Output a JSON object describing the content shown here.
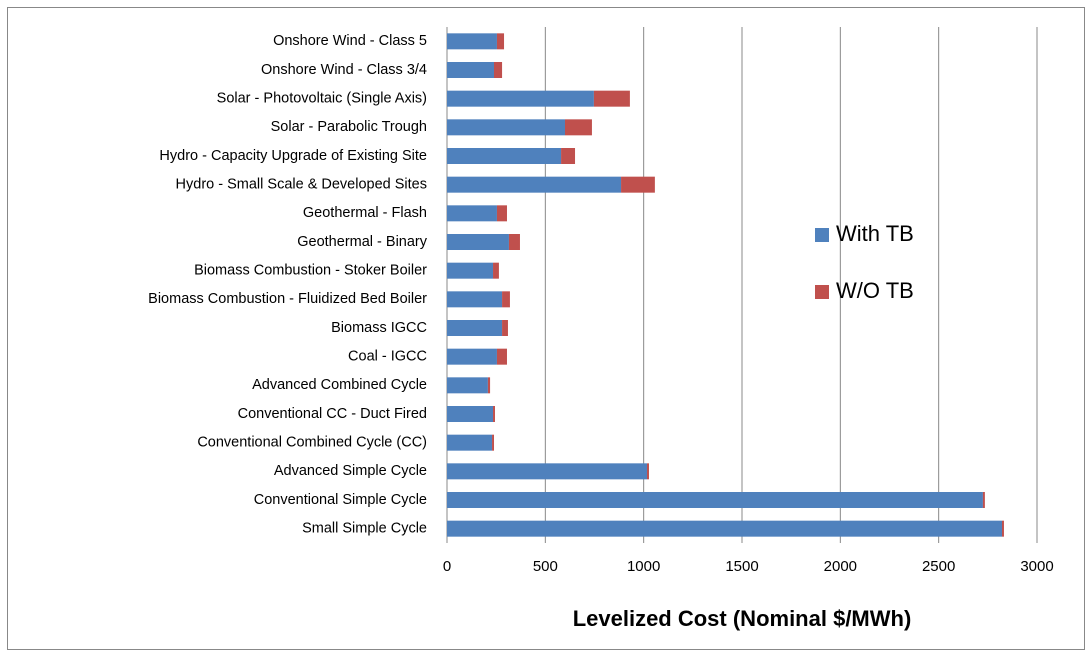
{
  "chart_data": {
    "type": "barh_stacked",
    "xlabel": "Levelized Cost (Nominal $/MWh)",
    "categories": [
      "Onshore Wind - Class 5",
      "Onshore Wind - Class 3/4",
      "Solar - Photovoltaic (Single Axis)",
      "Solar - Parabolic Trough",
      "Hydro - Capacity Upgrade of Existing Site",
      "Hydro - Small Scale & Developed  Sites",
      "Geothermal - Flash",
      "Geothermal - Binary",
      "Biomass Combustion - Stoker Boiler",
      "Biomass Combustion - Fluidized Bed Boiler",
      "Biomass IGCC",
      "Coal - IGCC",
      "Advanced Combined Cycle",
      "Conventional CC - Duct Fired",
      "Conventional Combined Cycle (CC)",
      "Advanced Simple Cycle",
      "Conventional Simple Cycle",
      "Small Simple Cycle"
    ],
    "series": [
      {
        "name": "With TB",
        "color": "#4f81bd",
        "values": [
          254,
          239,
          747,
          600,
          580,
          885,
          254,
          315,
          234,
          280,
          280,
          254,
          208,
          234,
          229,
          1017,
          2725,
          2822
        ]
      },
      {
        "name": "W/O TB",
        "color": "#c0504d",
        "values": [
          36,
          41,
          183,
          137,
          71,
          172,
          51,
          56,
          30,
          40,
          30,
          51,
          11,
          10,
          10,
          10,
          10,
          10
        ]
      }
    ],
    "xlim": [
      0,
      3000
    ],
    "xticks": [
      0,
      500,
      1000,
      1500,
      2000,
      2500,
      3000
    ],
    "grid": true
  }
}
